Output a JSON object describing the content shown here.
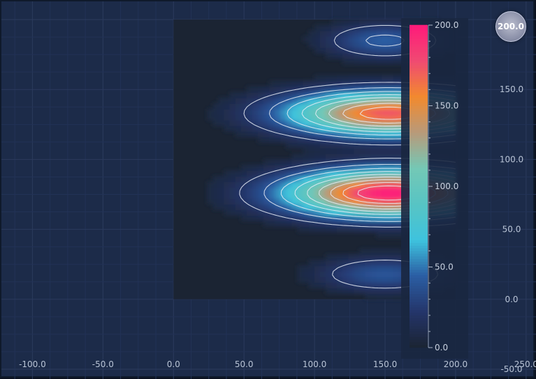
{
  "chart_data": {
    "type": "heatmap",
    "title": "",
    "xlabel": "",
    "ylabel": "",
    "xlim": [
      -122,
      257
    ],
    "ylim": [
      -57,
      213
    ],
    "x_ticks": [
      "-100.0",
      "-50.0",
      "0.0",
      "50.0",
      "100.0",
      "150.0",
      "200.0",
      "250.0"
    ],
    "x_tick_values": [
      -100,
      -50,
      0,
      50,
      100,
      150,
      200,
      250
    ],
    "y_ticks": [
      "-50.0",
      "0.0",
      "50.0",
      "100.0",
      "150.0"
    ],
    "y_tick_values": [
      -50,
      0,
      50,
      100,
      150
    ],
    "data_extent": {
      "x": [
        0,
        200
      ],
      "y": [
        0,
        200
      ]
    },
    "grid": true,
    "contours": true,
    "contour_levels": [
      20,
      40,
      60,
      80,
      100,
      120,
      140,
      160,
      180
    ],
    "peaks": [
      {
        "x": 153,
        "y": 76,
        "value": 200
      },
      {
        "x": 153,
        "y": 133,
        "value": 175
      },
      {
        "x": 150,
        "y": 185,
        "value": 45
      },
      {
        "x": 150,
        "y": 18,
        "value": 40
      }
    ],
    "colorbar": {
      "range": [
        0,
        200
      ],
      "tick_labels": [
        "0.0",
        "50.0",
        "100.0",
        "150.0",
        "200.0"
      ],
      "tick_values": [
        0,
        50,
        100,
        150,
        200
      ],
      "colors": [
        "#1b2433",
        "#24356a",
        "#2b5da3",
        "#3ec3de",
        "#57c4c4",
        "#74c8b6",
        "#b89a7a",
        "#f28a2e",
        "#f04a72",
        "#ff1a7a"
      ]
    }
  },
  "toolbar": {
    "zoom_label": "200.0",
    "zoom_icon": "zoom-extents-icon"
  }
}
